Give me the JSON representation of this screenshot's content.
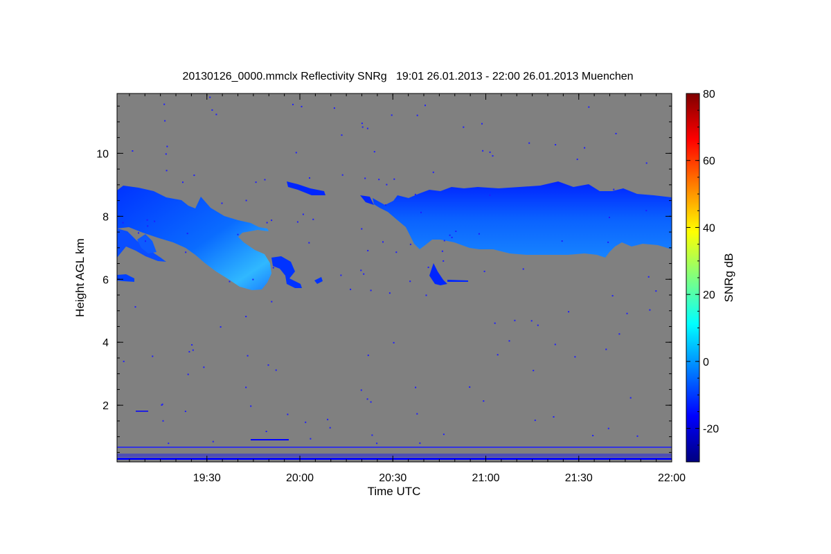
{
  "chart_data": {
    "type": "heatmap",
    "title": "20130126_0000.mmclx Reflectivity SNRg   19:01 26.01.2013 - 22:00 26.01.2013 Muenchen",
    "xlabel": "Time UTC",
    "ylabel": "Height AGL km",
    "colorbar_label": "SNRg dB",
    "xlim": [
      "19:01",
      "22:00"
    ],
    "ylim": [
      0.2,
      11.9
    ],
    "colorbar_range": [
      -30,
      80
    ],
    "x_ticks": [
      "19:30",
      "20:00",
      "20:30",
      "21:00",
      "21:30",
      "22:00"
    ],
    "y_ticks": [
      2,
      4,
      6,
      8,
      10
    ],
    "colorbar_ticks": [
      -20,
      0,
      20,
      40,
      60,
      80
    ],
    "background_color": "#808080",
    "colormap": "jet",
    "features": [
      {
        "name": "early cloud layer",
        "time_range": [
          "19:01",
          "20:00"
        ],
        "height_km": [
          5.7,
          9.0
        ],
        "snr_db": [
          -15,
          10
        ]
      },
      {
        "name": "lower fragment",
        "time_range": [
          "19:01",
          "19:06"
        ],
        "height_km": [
          5.9,
          6.1
        ],
        "snr_db": [
          -12,
          -8
        ]
      },
      {
        "name": "main cloud layer",
        "time_range": [
          "20:30",
          "22:00"
        ],
        "height_km": [
          6.8,
          9.2
        ],
        "snr_db": [
          -15,
          5
        ]
      },
      {
        "name": "cloud fragment",
        "time_range": [
          "20:40",
          "20:45"
        ],
        "height_km": [
          5.9,
          6.5
        ],
        "snr_db": [
          -18,
          -12
        ]
      },
      {
        "name": "near-surface clutter",
        "time_range": [
          "19:01",
          "22:00"
        ],
        "height_km": [
          0.25,
          0.65
        ],
        "snr_db": [
          -20,
          -15
        ]
      }
    ]
  }
}
